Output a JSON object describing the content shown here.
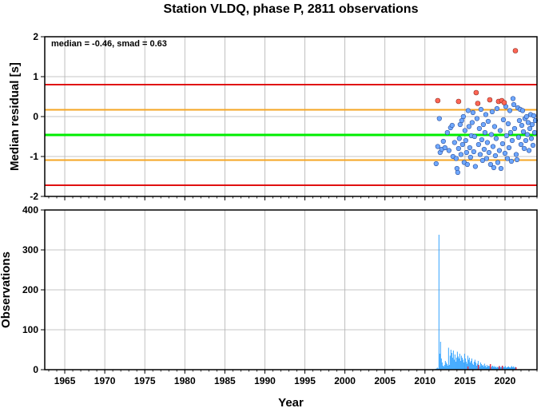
{
  "title": "Station VLDQ, phase P, 2811 observations",
  "xlabel": "Year",
  "colors": {
    "median_line": "#00ee00",
    "smad_line": "#f5a623",
    "outer_line": "#e01010",
    "point_fill": "#6fa8ff",
    "outlier_fill": "#ff6655",
    "bar_fill": "#33a3ff",
    "bar_red": "#e0304a",
    "grid": "#b0b0b0"
  },
  "chart_data": [
    {
      "type": "scatter",
      "ylabel": "Median residual [s]",
      "annotation": "median = -0.46, smad = 0.63",
      "xlim": [
        1962.5,
        2024.0
      ],
      "ylim": [
        -2,
        2
      ],
      "xticks": [
        1965,
        1970,
        1975,
        1980,
        1985,
        1990,
        1995,
        2000,
        2005,
        2010,
        2015,
        2020
      ],
      "yticks": [
        -2,
        -1,
        0,
        1,
        2
      ],
      "grid": true,
      "hlines": [
        {
          "y": -0.46,
          "kind": "median"
        },
        {
          "y": 0.17,
          "kind": "smad"
        },
        {
          "y": -1.09,
          "kind": "smad"
        },
        {
          "y": 0.8,
          "kind": "outer"
        },
        {
          "y": -1.72,
          "kind": "outer"
        }
      ],
      "outliers": [
        {
          "x": 2011.6,
          "y": 0.4
        },
        {
          "x": 2014.2,
          "y": 0.38
        },
        {
          "x": 2016.4,
          "y": 0.6
        },
        {
          "x": 2016.6,
          "y": 0.33
        },
        {
          "x": 2018.1,
          "y": 0.42
        },
        {
          "x": 2019.2,
          "y": 0.38
        },
        {
          "x": 2019.6,
          "y": 0.4
        },
        {
          "x": 2019.9,
          "y": 0.35
        },
        {
          "x": 2021.3,
          "y": 1.65
        }
      ],
      "points": [
        {
          "x": 2011.4,
          "y": -1.18
        },
        {
          "x": 2011.6,
          "y": -0.75
        },
        {
          "x": 2011.8,
          "y": -0.05
        },
        {
          "x": 2011.9,
          "y": -0.9
        },
        {
          "x": 2012.1,
          "y": -0.82
        },
        {
          "x": 2012.3,
          "y": -0.62
        },
        {
          "x": 2012.5,
          "y": -0.78
        },
        {
          "x": 2012.8,
          "y": -0.4
        },
        {
          "x": 2013.0,
          "y": -0.85
        },
        {
          "x": 2013.2,
          "y": -0.28
        },
        {
          "x": 2013.4,
          "y": -0.22
        },
        {
          "x": 2013.5,
          "y": -1.0
        },
        {
          "x": 2013.7,
          "y": -0.65
        },
        {
          "x": 2013.9,
          "y": -1.05
        },
        {
          "x": 2014.0,
          "y": -1.3
        },
        {
          "x": 2014.1,
          "y": -1.4
        },
        {
          "x": 2014.2,
          "y": -0.8
        },
        {
          "x": 2014.3,
          "y": -0.55
        },
        {
          "x": 2014.4,
          "y": -0.2
        },
        {
          "x": 2014.5,
          "y": -0.95
        },
        {
          "x": 2014.6,
          "y": -0.1
        },
        {
          "x": 2014.7,
          "y": -0.7
        },
        {
          "x": 2014.8,
          "y": 0.0
        },
        {
          "x": 2014.9,
          "y": -1.15
        },
        {
          "x": 2015.0,
          "y": -0.35
        },
        {
          "x": 2015.1,
          "y": -0.6
        },
        {
          "x": 2015.2,
          "y": -0.9
        },
        {
          "x": 2015.3,
          "y": -1.2
        },
        {
          "x": 2015.4,
          "y": 0.15
        },
        {
          "x": 2015.5,
          "y": -0.25
        },
        {
          "x": 2015.6,
          "y": -0.78
        },
        {
          "x": 2015.7,
          "y": -1.02
        },
        {
          "x": 2015.8,
          "y": -0.48
        },
        {
          "x": 2015.9,
          "y": -0.15
        },
        {
          "x": 2016.0,
          "y": 0.1
        },
        {
          "x": 2016.1,
          "y": -0.88
        },
        {
          "x": 2016.2,
          "y": -0.5
        },
        {
          "x": 2016.3,
          "y": -1.25
        },
        {
          "x": 2016.5,
          "y": -0.05
        },
        {
          "x": 2016.7,
          "y": -0.7
        },
        {
          "x": 2016.8,
          "y": -0.3
        },
        {
          "x": 2016.9,
          "y": -0.95
        },
        {
          "x": 2017.0,
          "y": 0.18
        },
        {
          "x": 2017.1,
          "y": -0.58
        },
        {
          "x": 2017.2,
          "y": -1.1
        },
        {
          "x": 2017.3,
          "y": -0.2
        },
        {
          "x": 2017.4,
          "y": -0.82
        },
        {
          "x": 2017.5,
          "y": -0.4
        },
        {
          "x": 2017.6,
          "y": 0.05
        },
        {
          "x": 2017.7,
          "y": -1.05
        },
        {
          "x": 2017.8,
          "y": -0.65
        },
        {
          "x": 2017.9,
          "y": -0.12
        },
        {
          "x": 2018.0,
          "y": -0.9
        },
        {
          "x": 2018.2,
          "y": -1.2
        },
        {
          "x": 2018.3,
          "y": -0.45
        },
        {
          "x": 2018.4,
          "y": 0.12
        },
        {
          "x": 2018.5,
          "y": -0.75
        },
        {
          "x": 2018.6,
          "y": -1.28
        },
        {
          "x": 2018.7,
          "y": -0.25
        },
        {
          "x": 2018.8,
          "y": -0.98
        },
        {
          "x": 2018.9,
          "y": -0.55
        },
        {
          "x": 2019.0,
          "y": 0.2
        },
        {
          "x": 2019.1,
          "y": -1.15
        },
        {
          "x": 2019.3,
          "y": -0.85
        },
        {
          "x": 2019.4,
          "y": -0.35
        },
        {
          "x": 2019.5,
          "y": -1.3
        },
        {
          "x": 2019.7,
          "y": -0.68
        },
        {
          "x": 2019.8,
          "y": -0.08
        },
        {
          "x": 2020.0,
          "y": -0.92
        },
        {
          "x": 2020.1,
          "y": 0.25
        },
        {
          "x": 2020.2,
          "y": -0.48
        },
        {
          "x": 2020.3,
          "y": -1.05
        },
        {
          "x": 2020.4,
          "y": -0.18
        },
        {
          "x": 2020.5,
          "y": -0.78
        },
        {
          "x": 2020.6,
          "y": 0.15
        },
        {
          "x": 2020.7,
          "y": -0.4
        },
        {
          "x": 2020.8,
          "y": -1.12
        },
        {
          "x": 2020.9,
          "y": -0.6
        },
        {
          "x": 2021.0,
          "y": 0.45
        },
        {
          "x": 2021.1,
          "y": 0.3
        },
        {
          "x": 2021.2,
          "y": -0.3
        },
        {
          "x": 2021.4,
          "y": -0.95
        },
        {
          "x": 2021.5,
          "y": -1.08
        },
        {
          "x": 2021.6,
          "y": 0.22
        },
        {
          "x": 2021.7,
          "y": -0.52
        },
        {
          "x": 2021.8,
          "y": -0.1
        },
        {
          "x": 2021.9,
          "y": 0.18
        },
        {
          "x": 2022.0,
          "y": -0.7
        },
        {
          "x": 2022.1,
          "y": -0.22
        },
        {
          "x": 2022.2,
          "y": 0.15
        },
        {
          "x": 2022.3,
          "y": -0.38
        },
        {
          "x": 2022.4,
          "y": -0.8
        },
        {
          "x": 2022.5,
          "y": -0.05
        },
        {
          "x": 2022.6,
          "y": -0.6
        },
        {
          "x": 2022.7,
          "y": 0.0
        },
        {
          "x": 2022.8,
          "y": -0.45
        },
        {
          "x": 2022.9,
          "y": -0.15
        },
        {
          "x": 2023.0,
          "y": -0.85
        },
        {
          "x": 2023.1,
          "y": -0.3
        },
        {
          "x": 2023.2,
          "y": 0.05
        },
        {
          "x": 2023.3,
          "y": -0.55
        },
        {
          "x": 2023.4,
          "y": -0.2
        },
        {
          "x": 2023.5,
          "y": -0.72
        },
        {
          "x": 2023.6,
          "y": 0.02
        },
        {
          "x": 2023.7,
          "y": -0.4
        },
        {
          "x": 2023.8,
          "y": -0.1
        }
      ]
    },
    {
      "type": "bar",
      "ylabel": "Observations",
      "xlabel": "Year",
      "xlim": [
        1962.5,
        2024.0
      ],
      "ylim": [
        0,
        400
      ],
      "xticks": [
        1965,
        1970,
        1975,
        1980,
        1985,
        1990,
        1995,
        2000,
        2005,
        2010,
        2015,
        2020
      ],
      "yticks": [
        0,
        100,
        200,
        300,
        400
      ],
      "grid": true,
      "bar_start": 2011.3,
      "bar_width": 0.1,
      "values": [
        2,
        3,
        5,
        3,
        338,
        40,
        70,
        28,
        18,
        10,
        8,
        12,
        22,
        18,
        14,
        10,
        55,
        12,
        35,
        50,
        42,
        30,
        48,
        25,
        38,
        20,
        30,
        45,
        33,
        28,
        40,
        22,
        35,
        30,
        25,
        18,
        40,
        28,
        20,
        15,
        35,
        25,
        30,
        18,
        22,
        28,
        15,
        12,
        20,
        25,
        18,
        10,
        15,
        22,
        12,
        8,
        18,
        14,
        10,
        12,
        8,
        15,
        10,
        6,
        12,
        8,
        10,
        9,
        7,
        6,
        8,
        10,
        7,
        9,
        6,
        8,
        5,
        7,
        6,
        8,
        9,
        6,
        7,
        5,
        8,
        6,
        7,
        9,
        5,
        6,
        7,
        8,
        6,
        5,
        7,
        9,
        6,
        8,
        5,
        7
      ],
      "red_bars": [
        {
          "x": 2015.3,
          "value": 8
        },
        {
          "x": 2016.6,
          "value": 12
        },
        {
          "x": 2018.1,
          "value": 14
        },
        {
          "x": 2019.2,
          "value": 9
        },
        {
          "x": 2019.6,
          "value": 10
        },
        {
          "x": 2021.3,
          "value": 6
        }
      ]
    }
  ]
}
